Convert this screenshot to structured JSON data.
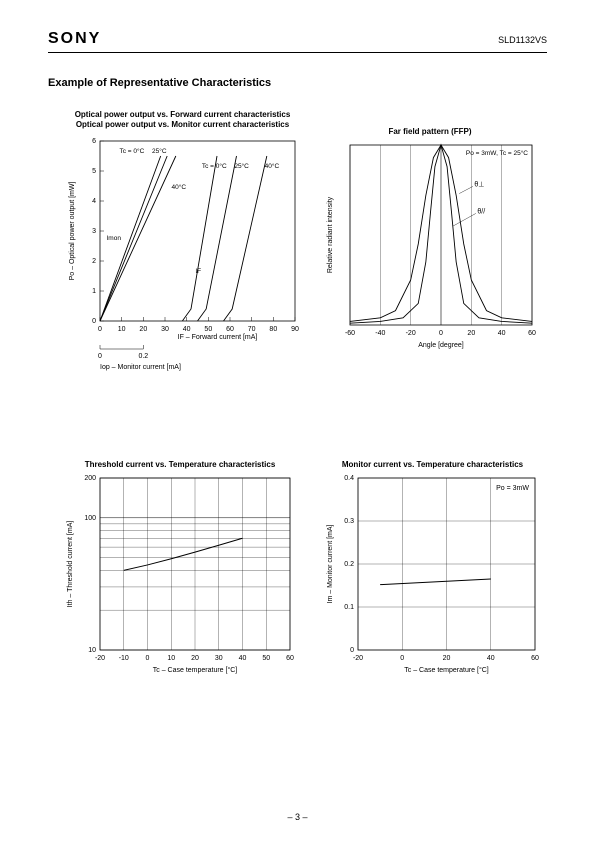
{
  "header": {
    "brand": "SONY",
    "part_number": "SLD1132VS"
  },
  "section_title": "Example of Representative Characteristics",
  "page_number": "– 3 –",
  "chart1": {
    "type": "line",
    "title_line1": "Optical power output vs. Forward current characteristics",
    "title_line2": "Optical power output vs. Monitor current characteristics",
    "ylabel": "Po – Optical power output [mW]",
    "xlabel_top": "IF – Forward current [mA]",
    "xlabel_bottom": "Iop – Monitor current [mA]",
    "xlim": [
      0,
      90
    ],
    "ylim": [
      0,
      6
    ],
    "xticks": [
      0,
      10,
      20,
      30,
      40,
      50,
      60,
      70,
      80,
      90
    ],
    "yticks": [
      0,
      1,
      2,
      3,
      4,
      5,
      6
    ],
    "xticks2": [
      0,
      0.2
    ],
    "annotations": {
      "tc_left": "Tc = 0°C",
      "tc_25": "25°C",
      "tc_40": "40°C",
      "tc_right_0": "Tc = 0°C",
      "tc_right_25": "25°C",
      "tc_right_40": "40°C",
      "imon": "Imon",
      "if": "IF"
    },
    "series": {
      "imon_0": [
        [
          0,
          0
        ],
        [
          28,
          5.5
        ]
      ],
      "imon_25": [
        [
          0,
          0
        ],
        [
          31,
          5.5
        ]
      ],
      "imon_40": [
        [
          0,
          0
        ],
        [
          35,
          5.5
        ]
      ],
      "if_0": [
        [
          38,
          0
        ],
        [
          42,
          0.4
        ],
        [
          54,
          5.5
        ]
      ],
      "if_25": [
        [
          45,
          0
        ],
        [
          49,
          0.4
        ],
        [
          63,
          5.5
        ]
      ],
      "if_40": [
        [
          57,
          0
        ],
        [
          61,
          0.4
        ],
        [
          77,
          5.5
        ]
      ]
    },
    "line_color": "#000000",
    "background_color": "#ffffff"
  },
  "chart2": {
    "type": "line",
    "title": "Far field pattern (FFP)",
    "ylabel": "Relative radiant intensity",
    "xlabel": "Angle [degree]",
    "xlim": [
      -60,
      60
    ],
    "xticks": [
      -60,
      -40,
      -20,
      0,
      20,
      40,
      60
    ],
    "condition": "Po = 3mW, Tc = 25°C",
    "theta_perp": "θ⊥",
    "theta_par": "θ//",
    "curve_perp": [
      [
        -60,
        0.02
      ],
      [
        -40,
        0.04
      ],
      [
        -30,
        0.08
      ],
      [
        -20,
        0.25
      ],
      [
        -15,
        0.45
      ],
      [
        -10,
        0.72
      ],
      [
        -5,
        0.93
      ],
      [
        0,
        1.0
      ],
      [
        5,
        0.93
      ],
      [
        10,
        0.72
      ],
      [
        15,
        0.45
      ],
      [
        20,
        0.25
      ],
      [
        30,
        0.08
      ],
      [
        40,
        0.04
      ],
      [
        60,
        0.02
      ]
    ],
    "curve_par": [
      [
        -60,
        0.01
      ],
      [
        -40,
        0.02
      ],
      [
        -25,
        0.04
      ],
      [
        -15,
        0.12
      ],
      [
        -10,
        0.35
      ],
      [
        -7,
        0.62
      ],
      [
        -4,
        0.88
      ],
      [
        0,
        1.0
      ],
      [
        4,
        0.88
      ],
      [
        7,
        0.62
      ],
      [
        10,
        0.35
      ],
      [
        15,
        0.12
      ],
      [
        25,
        0.04
      ],
      [
        40,
        0.02
      ],
      [
        60,
        0.01
      ]
    ],
    "line_color": "#000000"
  },
  "chart3": {
    "type": "line-log",
    "title": "Threshold current vs. Temperature characteristics",
    "ylabel": "Ith – Threshold current [mA]",
    "xlabel": "Tc – Case temperature [°C]",
    "xlim": [
      -20,
      60
    ],
    "xticks": [
      -20,
      -10,
      0,
      10,
      20,
      30,
      40,
      50,
      60
    ],
    "ylim": [
      10,
      200
    ],
    "ylog_ticks": [
      10,
      100,
      200
    ],
    "ylog_minors": [
      20,
      30,
      40,
      50,
      60,
      70,
      80,
      90
    ],
    "data": [
      [
        -10,
        40
      ],
      [
        0,
        44
      ],
      [
        10,
        49
      ],
      [
        20,
        55
      ],
      [
        30,
        62
      ],
      [
        40,
        70
      ]
    ],
    "line_color": "#000000"
  },
  "chart4": {
    "type": "line",
    "title": "Monitor current vs. Temperature characteristics",
    "ylabel": "Im – Monitor current [mA]",
    "xlabel": "Tc – Case temperature [°C]",
    "xlim": [
      -20,
      60
    ],
    "xticks": [
      -20,
      0,
      20,
      40,
      60
    ],
    "ylim": [
      0,
      0.4
    ],
    "yticks": [
      0,
      0.1,
      0.2,
      0.3,
      0.4
    ],
    "condition": "Po = 3mW",
    "data": [
      [
        -10,
        0.152
      ],
      [
        40,
        0.165
      ]
    ],
    "line_color": "#000000"
  }
}
